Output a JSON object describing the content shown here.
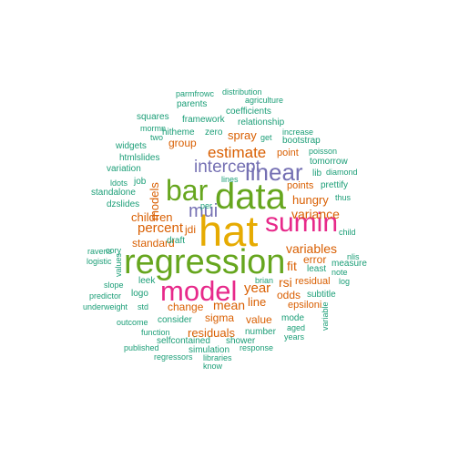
{
  "colors": {
    "teal": "#1b9e77",
    "orange": "#d95f02",
    "purple": "#7570b3",
    "pink": "#e7298a",
    "green": "#66a61e",
    "gold": "#e6ab02"
  },
  "words": [
    {
      "text": "hat",
      "color": "gold"
    },
    {
      "text": "regression",
      "color": "green"
    },
    {
      "text": "data",
      "color": "green"
    },
    {
      "text": "model",
      "color": "pink"
    },
    {
      "text": "sumin",
      "color": "pink"
    },
    {
      "text": "bar",
      "color": "green"
    },
    {
      "text": "linear",
      "color": "purple"
    },
    {
      "text": "intercept",
      "color": "purple"
    },
    {
      "text": "mui",
      "color": "purple"
    },
    {
      "text": "estimate",
      "color": "orange"
    },
    {
      "text": "percent",
      "color": "orange"
    },
    {
      "text": "variance",
      "color": "orange"
    },
    {
      "text": "variables",
      "color": "orange"
    },
    {
      "text": "children",
      "color": "orange"
    },
    {
      "text": "standard",
      "color": "orange"
    },
    {
      "text": "models",
      "color": "orange"
    },
    {
      "text": "year",
      "color": "orange"
    },
    {
      "text": "mean",
      "color": "orange"
    },
    {
      "text": "change",
      "color": "orange"
    },
    {
      "text": "residuals",
      "color": "orange"
    },
    {
      "text": "sigma",
      "color": "orange"
    },
    {
      "text": "hungry",
      "color": "orange"
    },
    {
      "text": "spray",
      "color": "orange"
    },
    {
      "text": "group",
      "color": "orange"
    },
    {
      "text": "line",
      "color": "orange"
    },
    {
      "text": "value",
      "color": "orange"
    },
    {
      "text": "fit",
      "color": "orange"
    },
    {
      "text": "rsi",
      "color": "orange"
    },
    {
      "text": "odds",
      "color": "orange"
    },
    {
      "text": "error",
      "color": "orange"
    },
    {
      "text": "points",
      "color": "orange"
    },
    {
      "text": "point",
      "color": "orange"
    },
    {
      "text": "jdi",
      "color": "orange"
    },
    {
      "text": "residual",
      "color": "orange"
    },
    {
      "text": "epsiloni",
      "color": "orange"
    },
    {
      "text": "parmfrowc",
      "color": "teal"
    },
    {
      "text": "distribution",
      "color": "teal"
    },
    {
      "text": "agriculture",
      "color": "teal"
    },
    {
      "text": "parents",
      "color": "teal"
    },
    {
      "text": "coefficients",
      "color": "teal"
    },
    {
      "text": "squares",
      "color": "teal"
    },
    {
      "text": "framework",
      "color": "teal"
    },
    {
      "text": "relationship",
      "color": "teal"
    },
    {
      "text": "mormn",
      "color": "teal"
    },
    {
      "text": "increase",
      "color": "teal"
    },
    {
      "text": "two",
      "color": "teal"
    },
    {
      "text": "hitheme",
      "color": "teal"
    },
    {
      "text": "zero",
      "color": "teal"
    },
    {
      "text": "get",
      "color": "teal"
    },
    {
      "text": "bootstrap",
      "color": "teal"
    },
    {
      "text": "poisson",
      "color": "teal"
    },
    {
      "text": "widgets",
      "color": "teal"
    },
    {
      "text": "tomorrow",
      "color": "teal"
    },
    {
      "text": "htmlslides",
      "color": "teal"
    },
    {
      "text": "diamond",
      "color": "teal"
    },
    {
      "text": "variation",
      "color": "teal"
    },
    {
      "text": "lib",
      "color": "teal"
    },
    {
      "text": "job",
      "color": "teal"
    },
    {
      "text": "ldots",
      "color": "teal"
    },
    {
      "text": "prettify",
      "color": "teal"
    },
    {
      "text": "lines",
      "color": "teal"
    },
    {
      "text": "standalone",
      "color": "teal"
    },
    {
      "text": "thus",
      "color": "teal"
    },
    {
      "text": "dzslides",
      "color": "teal"
    },
    {
      "text": "per",
      "color": "teal"
    },
    {
      "text": "draft",
      "color": "teal"
    },
    {
      "text": "child",
      "color": "teal"
    },
    {
      "text": "ravens",
      "color": "teal"
    },
    {
      "text": "logistic",
      "color": "teal"
    },
    {
      "text": "cory",
      "color": "teal"
    },
    {
      "text": "values",
      "color": "teal"
    },
    {
      "text": "nlis",
      "color": "teal"
    },
    {
      "text": "measure",
      "color": "teal"
    },
    {
      "text": "least",
      "color": "teal"
    },
    {
      "text": "note",
      "color": "teal"
    },
    {
      "text": "brian",
      "color": "teal"
    },
    {
      "text": "log",
      "color": "teal"
    },
    {
      "text": "leek",
      "color": "teal"
    },
    {
      "text": "slope",
      "color": "teal"
    },
    {
      "text": "logo",
      "color": "teal"
    },
    {
      "text": "subtitle",
      "color": "teal"
    },
    {
      "text": "predictor",
      "color": "teal"
    },
    {
      "text": "underweight",
      "color": "teal"
    },
    {
      "text": "std",
      "color": "teal"
    },
    {
      "text": "consider",
      "color": "teal"
    },
    {
      "text": "mode",
      "color": "teal"
    },
    {
      "text": "variable",
      "color": "teal"
    },
    {
      "text": "outcome",
      "color": "teal"
    },
    {
      "text": "aged",
      "color": "teal"
    },
    {
      "text": "number",
      "color": "teal"
    },
    {
      "text": "years",
      "color": "teal"
    },
    {
      "text": "function",
      "color": "teal"
    },
    {
      "text": "selfcontained",
      "color": "teal"
    },
    {
      "text": "shower",
      "color": "teal"
    },
    {
      "text": "published",
      "color": "teal"
    },
    {
      "text": "simulation",
      "color": "teal"
    },
    {
      "text": "response",
      "color": "teal"
    },
    {
      "text": "regressors",
      "color": "teal"
    },
    {
      "text": "libraries",
      "color": "teal"
    },
    {
      "text": "know",
      "color": "teal"
    }
  ]
}
